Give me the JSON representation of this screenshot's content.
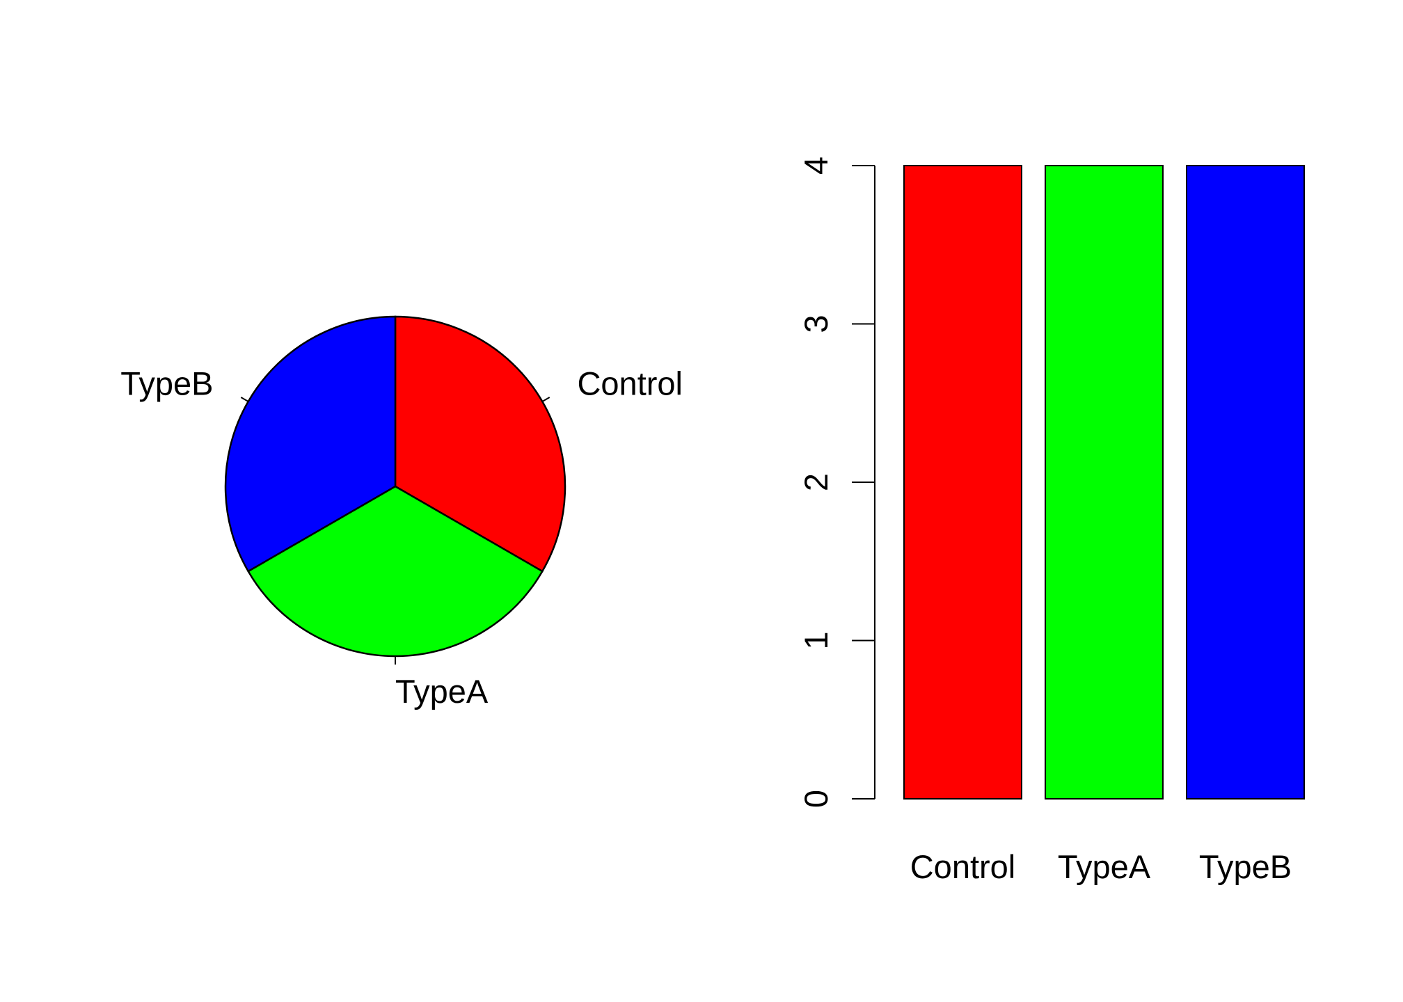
{
  "chart_data": [
    {
      "type": "pie",
      "categories": [
        "Control",
        "TypeA",
        "TypeB"
      ],
      "values": [
        4,
        4,
        4
      ],
      "colors": [
        "#ff0000",
        "#00ff00",
        "#0000ff"
      ],
      "start": "12 o'clock",
      "direction": "clockwise"
    },
    {
      "type": "bar",
      "categories": [
        "Control",
        "TypeA",
        "TypeB"
      ],
      "values": [
        4,
        4,
        4
      ],
      "colors": [
        "#ff0000",
        "#00ff00",
        "#0000ff"
      ],
      "ylim": [
        0,
        4
      ],
      "yticks": [
        "0",
        "1",
        "2",
        "3",
        "4"
      ],
      "grid": false,
      "legend": "none"
    }
  ]
}
